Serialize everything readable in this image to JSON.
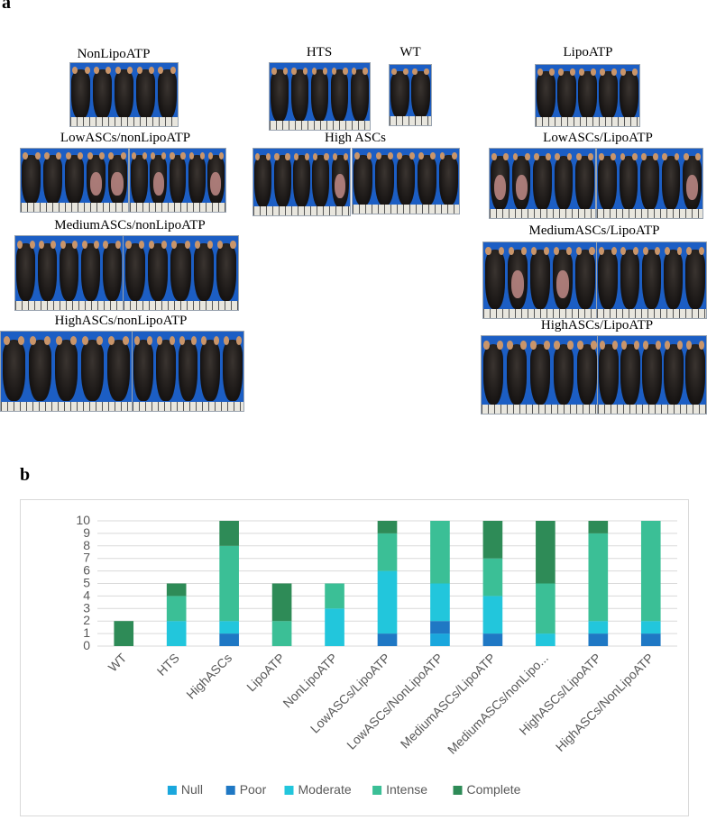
{
  "panel_a": {
    "letter": "a",
    "groups": [
      {
        "id": "nonlipoatp",
        "label": "NonLipoATP",
        "mice": 5,
        "bald": [
          0,
          0,
          0,
          0,
          0
        ]
      },
      {
        "id": "hts",
        "label": "HTS",
        "mice": 5,
        "bald": [
          0,
          0,
          0,
          0,
          0
        ]
      },
      {
        "id": "wt",
        "label": "WT",
        "mice": 2,
        "bald": [
          0,
          0
        ]
      },
      {
        "id": "lipoatp",
        "label": "LipoATP",
        "mice": 5,
        "bald": [
          0,
          0,
          0,
          0,
          0
        ]
      },
      {
        "id": "low-nonlipo",
        "label": "LowASCs/nonLipoATP",
        "mice": 10,
        "bald": [
          0,
          0,
          0,
          1,
          1,
          0,
          1,
          0,
          0,
          1
        ]
      },
      {
        "id": "high",
        "label": "High ASCs",
        "mice": 10,
        "bald": [
          0,
          0,
          0,
          0,
          1,
          0,
          0,
          0,
          0,
          0
        ]
      },
      {
        "id": "low-lipo",
        "label": "LowASCs/LipoATP",
        "mice": 10,
        "bald": [
          1,
          1,
          0,
          0,
          0,
          0,
          0,
          0,
          0,
          1
        ]
      },
      {
        "id": "medium-nonlipo",
        "label": "MediumASCs/nonLipoATP",
        "mice": 10,
        "bald": [
          0,
          0,
          0,
          0,
          0,
          0,
          0,
          0,
          0,
          0
        ]
      },
      {
        "id": "medium-lipo",
        "label": "MediumASCs/LipoATP",
        "mice": 10,
        "bald": [
          0,
          1,
          0,
          1,
          0,
          0,
          0,
          0,
          0,
          0
        ]
      },
      {
        "id": "high-nonlipo",
        "label": "HighASCs/nonLipoATP",
        "mice": 10,
        "bald": [
          0,
          0,
          0,
          0,
          0,
          0,
          0,
          0,
          0,
          0
        ]
      },
      {
        "id": "high-lipo",
        "label": "HighASCs/LipoATP",
        "mice": 10,
        "bald": [
          0,
          0,
          0,
          0,
          0,
          0,
          0,
          0,
          0,
          0
        ]
      }
    ]
  },
  "panel_b": {
    "letter": "b"
  },
  "chart_data": {
    "type": "bar",
    "stacked": true,
    "categories": [
      "WT",
      "HTS",
      "HighASCs",
      "LipoATP",
      "NonLipoATP",
      "LowASCs/LipoATP",
      "LowASCs/NonLipoATP",
      "MediumASCs/LipoATP",
      "MediumASCs/nonLipo...",
      "HighASCs/LipoATP",
      "HighASCs/NonLipoATP"
    ],
    "series": [
      {
        "name": "Null",
        "color": "#1aa7dd",
        "values": [
          0,
          0,
          0,
          0,
          0,
          0,
          1,
          0,
          0,
          0,
          0
        ]
      },
      {
        "name": "Poor",
        "color": "#1f78c4",
        "values": [
          0,
          0,
          1,
          0,
          0,
          1,
          1,
          1,
          0,
          1,
          1
        ]
      },
      {
        "name": "Moderate",
        "color": "#22c6dc",
        "values": [
          0,
          2,
          1,
          0,
          3,
          5,
          3,
          3,
          1,
          1,
          1
        ]
      },
      {
        "name": "Intense",
        "color": "#3bbf96",
        "values": [
          0,
          2,
          6,
          2,
          2,
          3,
          5,
          3,
          4,
          7,
          8
        ]
      },
      {
        "name": "Complete",
        "color": "#2e8b57",
        "values": [
          2,
          1,
          2,
          3,
          0,
          1,
          0,
          3,
          5,
          1,
          0
        ]
      }
    ],
    "ylim": [
      0,
      10
    ],
    "yticks": [
      "0",
      "1",
      "2",
      "3",
      "4",
      "5",
      "6",
      "7",
      "8",
      "9",
      "10"
    ],
    "grid": true,
    "legend_position": "bottom"
  }
}
